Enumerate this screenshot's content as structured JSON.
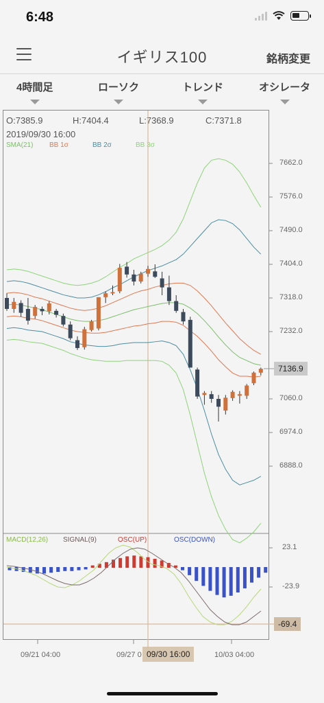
{
  "status": {
    "time": "6:48"
  },
  "nav": {
    "title": "イギリス100",
    "right_button": "銘柄変更"
  },
  "toolbar": {
    "items": [
      "4時間足",
      "ローソク",
      "トレンド",
      "オシレータ"
    ]
  },
  "ohlc": {
    "open": "O:7385.9",
    "high": "H:7404.4",
    "low": "L:7368.9",
    "close": "C:7371.8",
    "datetime": "2019/09/30 16:00"
  },
  "legend_top": {
    "sma": "SMA(21)",
    "bb1": "BB 1σ",
    "bb2": "BB 2σ",
    "bb3": "BB 3σ"
  },
  "legend_bottom": {
    "macd": "MACD(12,26)",
    "signal": "SIGNAL(9)",
    "osc_up": "OSC(UP)",
    "osc_down": "OSC(DOWN)"
  },
  "price_axis": [
    "7662.0",
    "7576.0",
    "7490.0",
    "7404.0",
    "7318.0",
    "7232.0",
    "7060.0",
    "6974.0",
    "6888.0"
  ],
  "current_price": "7136.9",
  "macd_axis": [
    "23.1",
    "-23.9"
  ],
  "macd_current": "-69.4",
  "time_axis": [
    "09/21 04:00",
    "09/27 0",
    "10/03 04:00"
  ],
  "cursor_time": "09/30 16:00",
  "colors": {
    "up": "#d0703a",
    "down": "#3d4a5c",
    "sma": "#7cc06a",
    "bb1": "#e07850",
    "bb2": "#4a8ca0",
    "bb3": "#8ed37a",
    "osc_up": "#d03a30",
    "osc_down": "#3a52c8",
    "macd_line": "#b8d878",
    "signal_line": "#7a6a6a"
  },
  "chart_data": {
    "type": "candlestick",
    "candles": [
      {
        "o": 7318,
        "h": 7330,
        "l": 7285,
        "c": 7290
      },
      {
        "o": 7290,
        "h": 7318,
        "l": 7280,
        "c": 7308
      },
      {
        "o": 7305,
        "h": 7312,
        "l": 7270,
        "c": 7280
      },
      {
        "o": 7290,
        "h": 7318,
        "l": 7250,
        "c": 7260
      },
      {
        "o": 7272,
        "h": 7300,
        "l": 7265,
        "c": 7295
      },
      {
        "o": 7290,
        "h": 7296,
        "l": 7274,
        "c": 7284
      },
      {
        "o": 7284,
        "h": 7310,
        "l": 7276,
        "c": 7304
      },
      {
        "o": 7285,
        "h": 7290,
        "l": 7268,
        "c": 7275
      },
      {
        "o": 7272,
        "h": 7278,
        "l": 7245,
        "c": 7250
      },
      {
        "o": 7250,
        "h": 7258,
        "l": 7210,
        "c": 7215
      },
      {
        "o": 7210,
        "h": 7220,
        "l": 7185,
        "c": 7190
      },
      {
        "o": 7192,
        "h": 7244,
        "l": 7186,
        "c": 7238
      },
      {
        "o": 7236,
        "h": 7262,
        "l": 7232,
        "c": 7258
      },
      {
        "o": 7240,
        "h": 7320,
        "l": 7235,
        "c": 7320
      },
      {
        "o": 7320,
        "h": 7335,
        "l": 7305,
        "c": 7330
      },
      {
        "o": 7330,
        "h": 7350,
        "l": 7325,
        "c": 7333
      },
      {
        "o": 7335,
        "h": 7405,
        "l": 7330,
        "c": 7395
      },
      {
        "o": 7398,
        "h": 7410,
        "l": 7370,
        "c": 7378
      },
      {
        "o": 7378,
        "h": 7390,
        "l": 7350,
        "c": 7360
      },
      {
        "o": 7360,
        "h": 7385,
        "l": 7355,
        "c": 7380
      },
      {
        "o": 7380,
        "h": 7400,
        "l": 7372,
        "c": 7392
      },
      {
        "o": 7386,
        "h": 7404,
        "l": 7369,
        "c": 7372
      },
      {
        "o": 7368,
        "h": 7385,
        "l": 7325,
        "c": 7345
      },
      {
        "o": 7345,
        "h": 7375,
        "l": 7300,
        "c": 7310
      },
      {
        "o": 7310,
        "h": 7325,
        "l": 7280,
        "c": 7285
      },
      {
        "o": 7282,
        "h": 7290,
        "l": 7250,
        "c": 7258
      },
      {
        "o": 7262,
        "h": 7270,
        "l": 7140,
        "c": 7140
      },
      {
        "o": 7135,
        "h": 7140,
        "l": 7060,
        "c": 7066
      },
      {
        "o": 7070,
        "h": 7080,
        "l": 7045,
        "c": 7075
      },
      {
        "o": 7072,
        "h": 7080,
        "l": 7050,
        "c": 7060
      },
      {
        "o": 7060,
        "h": 7070,
        "l": 7002,
        "c": 7040
      },
      {
        "o": 7030,
        "h": 7070,
        "l": 7020,
        "c": 7063
      },
      {
        "o": 7062,
        "h": 7082,
        "l": 7055,
        "c": 7078
      },
      {
        "o": 7068,
        "h": 7080,
        "l": 7048,
        "c": 7072
      },
      {
        "o": 7068,
        "h": 7098,
        "l": 7060,
        "c": 7094
      },
      {
        "o": 7100,
        "h": 7130,
        "l": 7095,
        "c": 7127
      },
      {
        "o": 7127,
        "h": 7140,
        "l": 7120,
        "c": 7137
      }
    ],
    "sma": [
      7300,
      7302,
      7300,
      7296,
      7292,
      7288,
      7282,
      7276,
      7270,
      7264,
      7260,
      7258,
      7258,
      7260,
      7264,
      7270,
      7276,
      7282,
      7288,
      7292,
      7296,
      7300,
      7304,
      7306,
      7306,
      7302,
      7292,
      7278,
      7260,
      7240,
      7218,
      7198,
      7180,
      7166,
      7158,
      7150,
      7146
    ],
    "bb1": [
      7330,
      7332,
      7330,
      7326,
      7320,
      7316,
      7310,
      7304,
      7298,
      7292,
      7288,
      7286,
      7288,
      7292,
      7298,
      7306,
      7314,
      7322,
      7330,
      7336,
      7340,
      7346,
      7350,
      7354,
      7356,
      7356,
      7350,
      7336,
      7318,
      7298,
      7276,
      7254,
      7234,
      7214,
      7198,
      7184,
      7174
    ],
    "bb2": [
      7360,
      7362,
      7360,
      7356,
      7350,
      7344,
      7338,
      7332,
      7326,
      7322,
      7318,
      7318,
      7320,
      7326,
      7334,
      7344,
      7352,
      7362,
      7372,
      7380,
      7388,
      7394,
      7400,
      7408,
      7416,
      7430,
      7450,
      7470,
      7490,
      7510,
      7518,
      7516,
      7508,
      7492,
      7470,
      7448,
      7430
    ],
    "bb3": [
      7390,
      7392,
      7390,
      7386,
      7380,
      7374,
      7368,
      7362,
      7356,
      7352,
      7350,
      7352,
      7356,
      7362,
      7372,
      7384,
      7396,
      7406,
      7418,
      7426,
      7434,
      7442,
      7452,
      7466,
      7486,
      7520,
      7566,
      7612,
      7650,
      7670,
      7674,
      7670,
      7660,
      7640,
      7612,
      7580,
      7550
    ]
  }
}
